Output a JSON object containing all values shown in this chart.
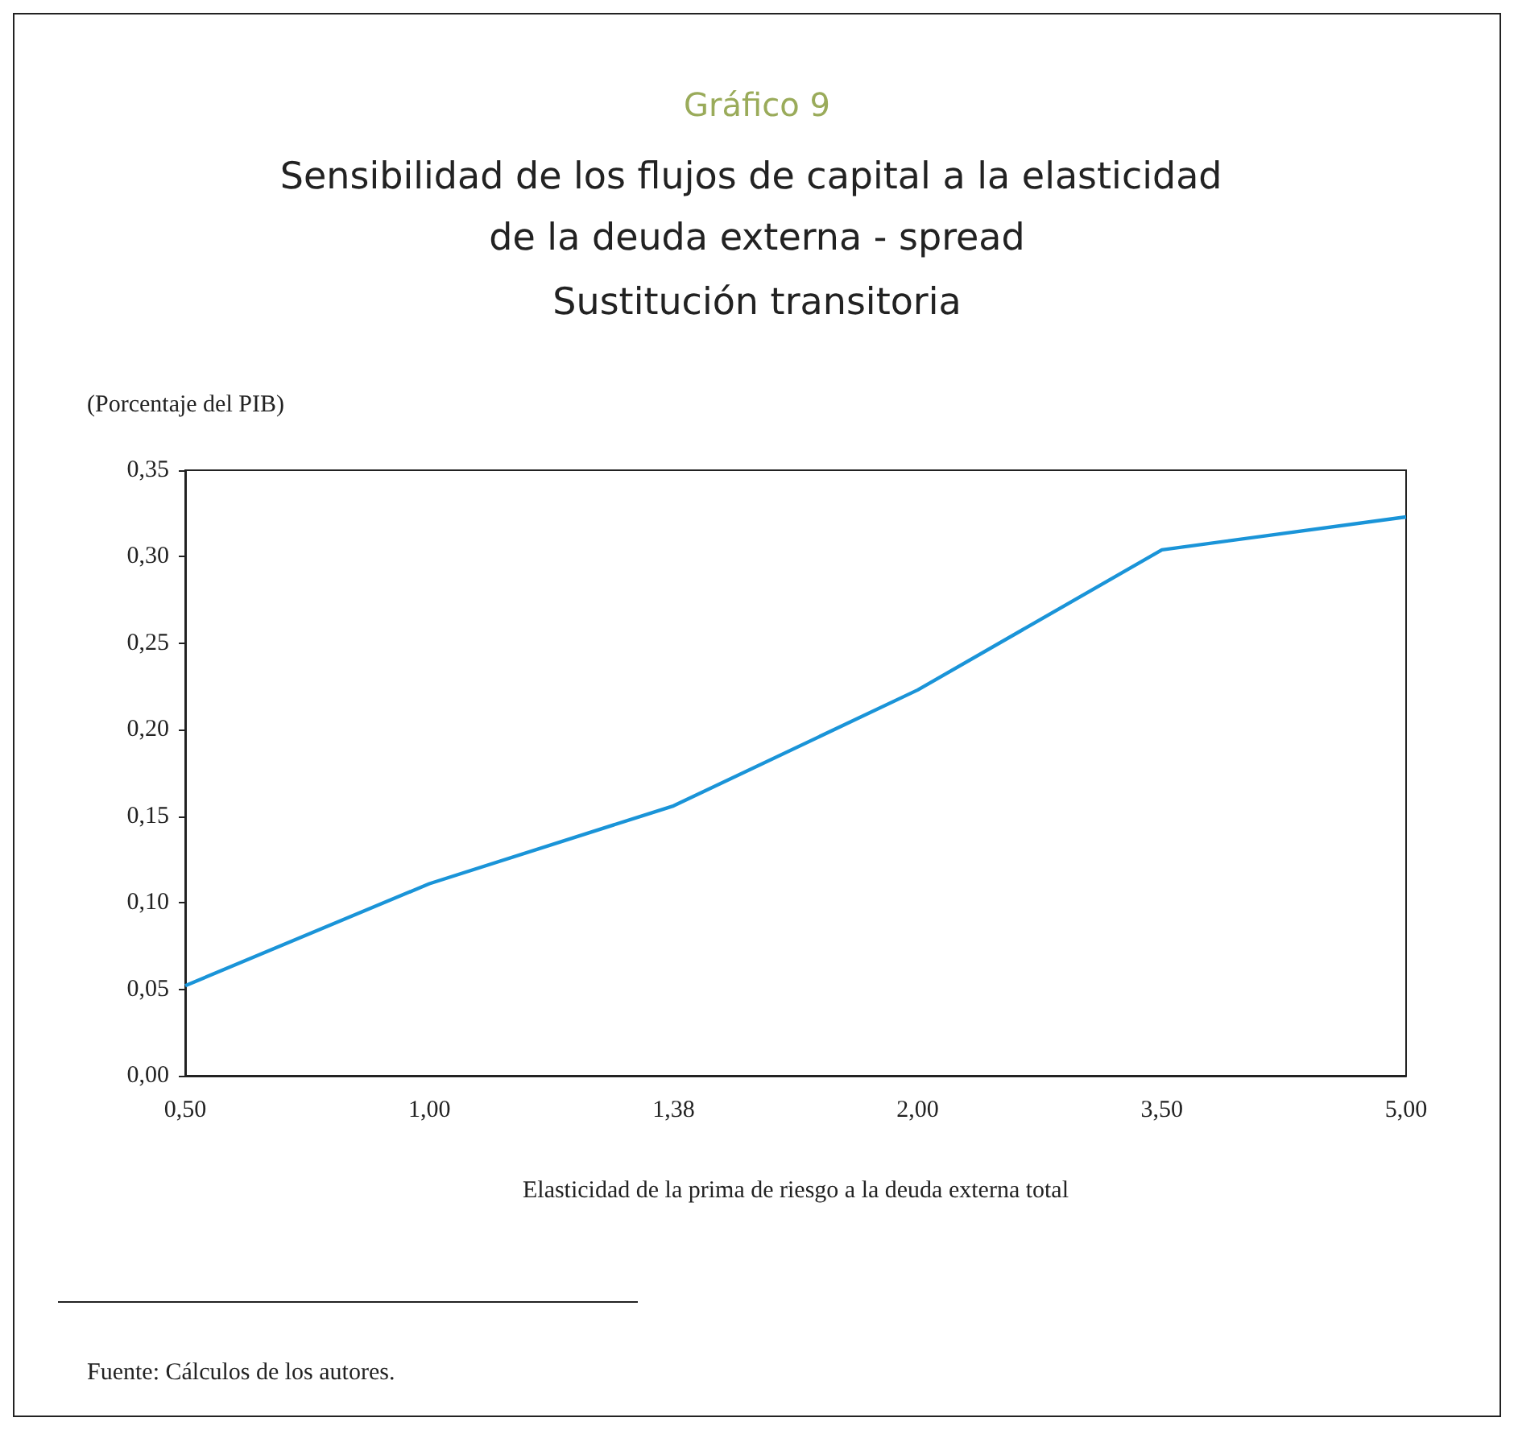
{
  "chart_data": {
    "type": "line",
    "title": "Sensibilidad de los flujos de capital a la elasticidad de la deuda externa - spread",
    "subtitle": "Sustitución transitoria",
    "ylabel": "(Porcentaje del PIB)",
    "xlabel": "Elasticidad de la prima de riesgo a la deuda externa total",
    "annotations": [
      "Gráfico 9",
      "Fuente: Cálculos de los autores."
    ],
    "categories": [
      "0,50",
      "1,00",
      "1,38",
      "2,00",
      "3,50",
      "5,00"
    ],
    "series": [
      {
        "color": "#1a94d8",
        "values": [
          0.052,
          0.111,
          0.156,
          0.223,
          0.304,
          0.323
        ]
      }
    ],
    "ylim": [
      0,
      0.35
    ],
    "yticks": [
      {
        "value": 0,
        "label": "0,00"
      },
      {
        "value": 0.05,
        "label": "0,05"
      },
      {
        "value": 0.1,
        "label": "0,10"
      },
      {
        "value": 0.15,
        "label": "0,15"
      },
      {
        "value": 0.2,
        "label": "0,20"
      },
      {
        "value": 0.25,
        "label": "0,25"
      },
      {
        "value": 0.3,
        "label": "0,30"
      },
      {
        "value": 0.35,
        "label": "0,35"
      }
    ],
    "marker": "none",
    "line_style": "solid"
  }
}
